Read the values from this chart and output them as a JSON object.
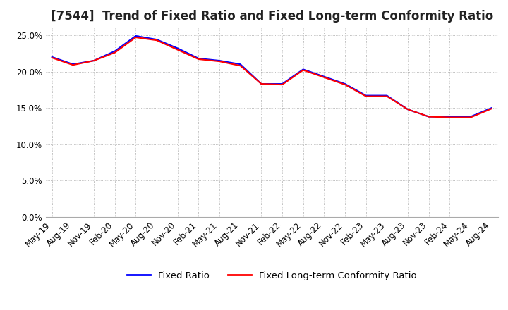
{
  "title": "[7544]  Trend of Fixed Ratio and Fixed Long-term Conformity Ratio",
  "x_labels": [
    "May-19",
    "Aug-19",
    "Nov-19",
    "Feb-20",
    "May-20",
    "Aug-20",
    "Nov-20",
    "Feb-21",
    "May-21",
    "Aug-21",
    "Nov-21",
    "Feb-22",
    "May-22",
    "Aug-22",
    "Nov-22",
    "Feb-23",
    "May-23",
    "Aug-23",
    "Nov-23",
    "Feb-24",
    "May-24",
    "Aug-24"
  ],
  "fixed_ratio": [
    0.22,
    0.21,
    0.215,
    0.228,
    0.249,
    0.244,
    0.232,
    0.218,
    0.215,
    0.21,
    0.183,
    0.183,
    0.203,
    0.193,
    0.183,
    0.167,
    0.167,
    0.148,
    0.138,
    0.138,
    0.138,
    0.15
  ],
  "fixed_lt_ratio": [
    0.219,
    0.209,
    0.215,
    0.226,
    0.247,
    0.243,
    0.23,
    0.217,
    0.214,
    0.208,
    0.183,
    0.182,
    0.202,
    0.192,
    0.182,
    0.166,
    0.166,
    0.148,
    0.138,
    0.137,
    0.137,
    0.149
  ],
  "fixed_ratio_color": "#0000FF",
  "fixed_lt_ratio_color": "#FF0000",
  "line_width": 1.5,
  "ylim": [
    0.0,
    0.26
  ],
  "yticks": [
    0.0,
    0.05,
    0.1,
    0.15,
    0.2,
    0.25
  ],
  "background_color": "#FFFFFF",
  "plot_bg_color": "#FFFFFF",
  "grid_color": "#AAAAAA",
  "legend_fixed_ratio": "Fixed Ratio",
  "legend_fixed_lt_ratio": "Fixed Long-term Conformity Ratio",
  "title_fontsize": 12,
  "tick_fontsize": 8.5,
  "legend_fontsize": 9.5
}
